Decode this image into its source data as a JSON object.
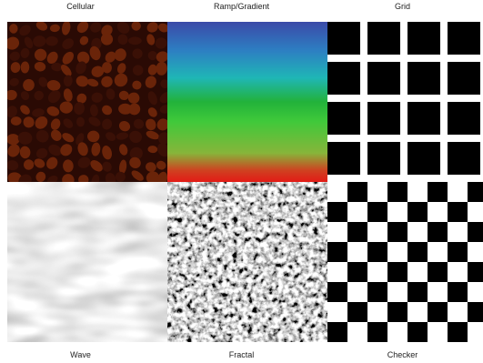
{
  "top_labels": [
    "Cellular",
    "Ramp/Gradient",
    "Grid"
  ],
  "bottom_labels": [
    "Wave",
    "Fractal",
    "Checker"
  ],
  "textures": [
    {
      "name": "cellular",
      "colors": {
        "base": "#3a1006",
        "cell": "#6a2409",
        "edge": "#2a0a04"
      }
    },
    {
      "name": "ramp-gradient",
      "colors": {
        "top": "#3b4aa8",
        "mid": "#22b23a",
        "bottom": "#e21a16"
      }
    },
    {
      "name": "grid",
      "colors": {
        "line": "#ffffff",
        "cell": "#000000"
      }
    },
    {
      "name": "wave",
      "colors": {
        "dark": "#6f6f6f",
        "light": "#c8c8c8"
      }
    },
    {
      "name": "fractal",
      "colors": {
        "dark": "#000000",
        "light": "#ffffff"
      }
    },
    {
      "name": "checker",
      "colors": {
        "a": "#000000",
        "b": "#ffffff"
      }
    }
  ]
}
